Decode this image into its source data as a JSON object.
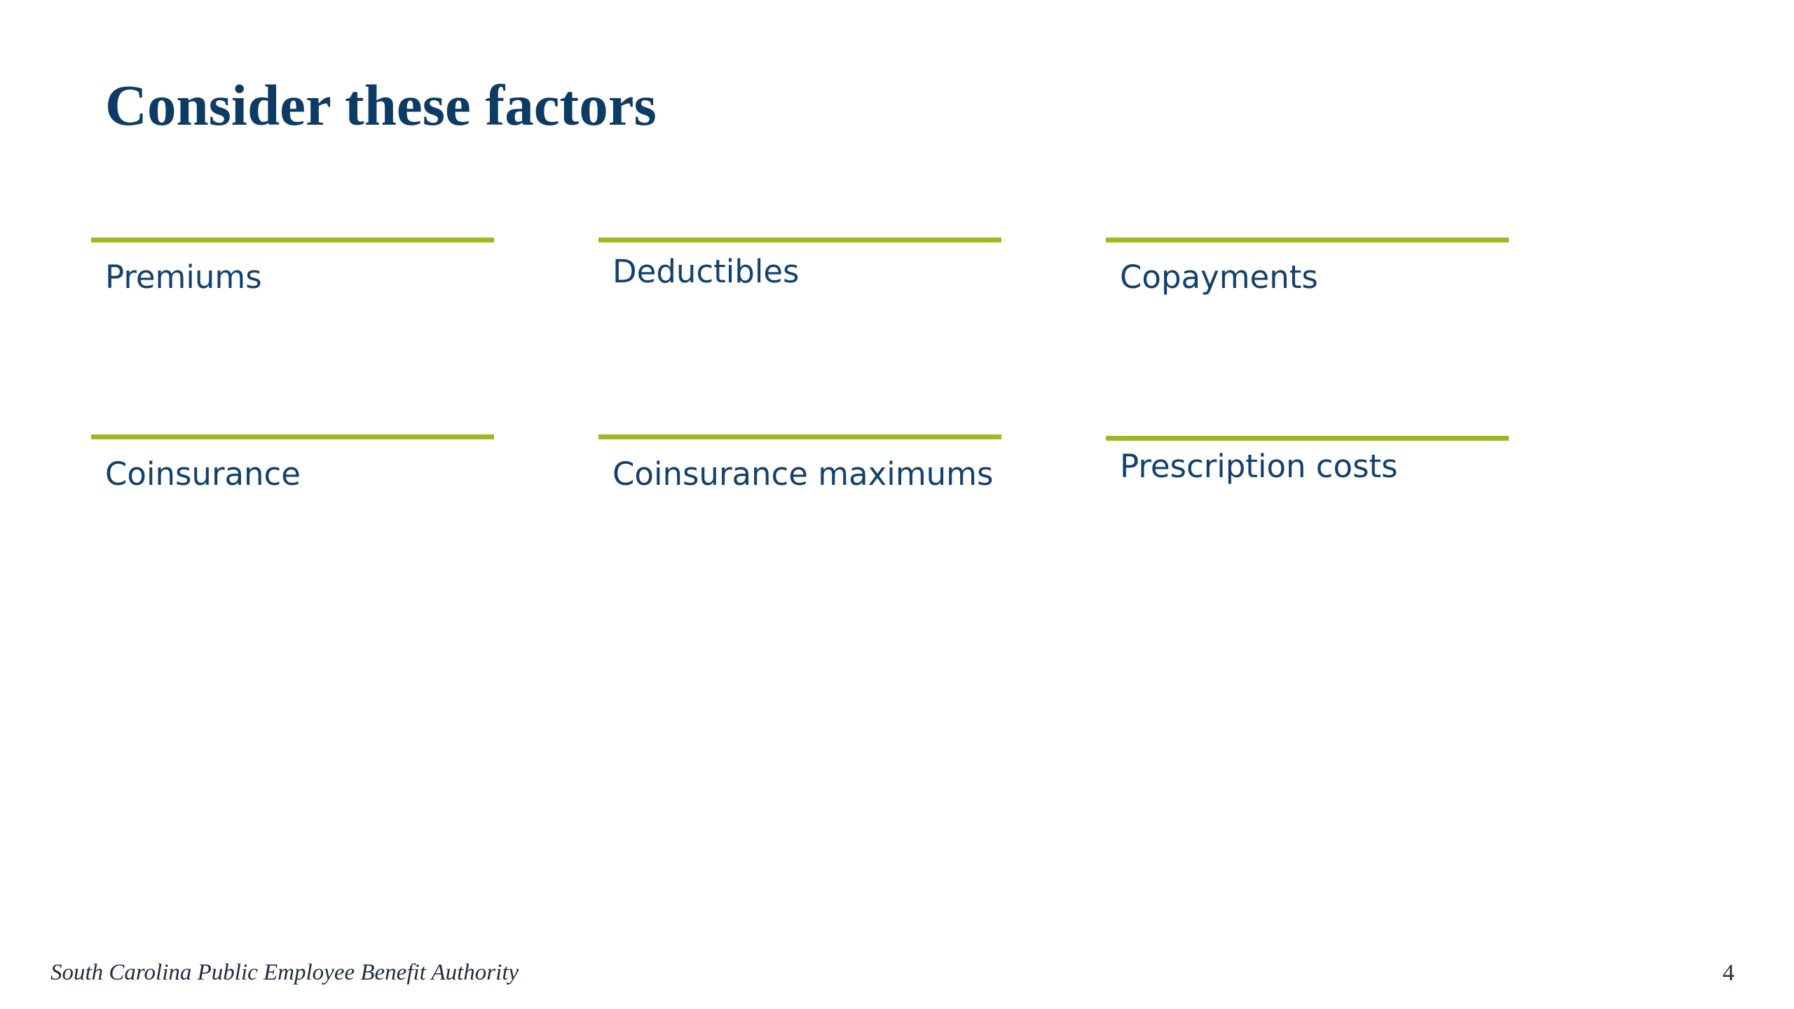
{
  "slide": {
    "title": "Consider these factors",
    "factors": [
      {
        "label": "Premiums"
      },
      {
        "label": "Deductibles"
      },
      {
        "label": "Copayments"
      },
      {
        "label": "Coinsurance"
      },
      {
        "label": "Coinsurance maximums"
      },
      {
        "label": "Prescription costs"
      }
    ],
    "footer": {
      "organization": "South Carolina Public Employee Benefit Authority",
      "page_number": "4"
    }
  },
  "colors": {
    "title": "#0e3b63",
    "label": "#13416c",
    "rule": "#9bbb1d",
    "footer": "#1f2c3f",
    "background": "#ffffff"
  }
}
